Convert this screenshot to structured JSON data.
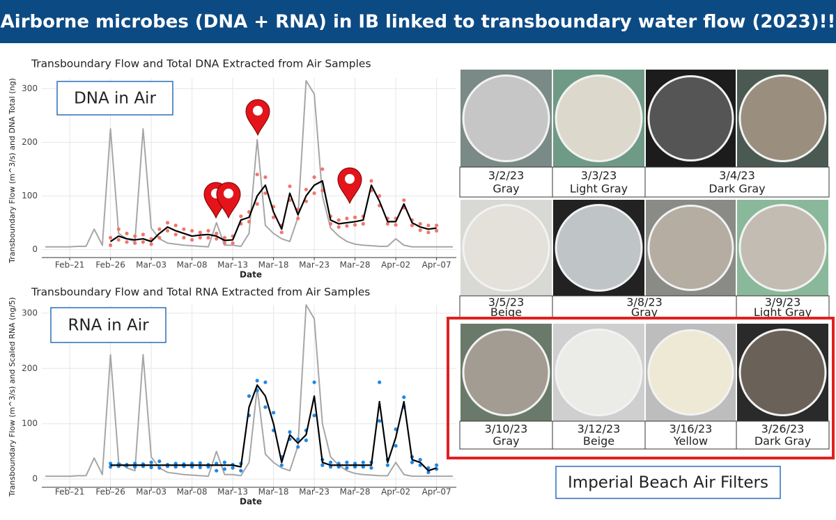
{
  "header": {
    "title": "Airborne microbes (DNA + RNA) in IB linked to transboundary water flow (2023)!!"
  },
  "chart_data": [
    {
      "type": "line",
      "title": "Transboundary Flow and Total DNA Extracted from Air Samples",
      "inset_label": "DNA in Air",
      "xlabel": "Date",
      "ylabel": "Transboundary Flow (m^3/s) and DNA Total (ng)",
      "categories": [
        null,
        null,
        null,
        "Feb–21",
        null,
        null,
        null,
        null,
        "Feb–26",
        null,
        null,
        null,
        null,
        "Mar–03",
        null,
        null,
        null,
        null,
        "Mar–08",
        null,
        null,
        null,
        null,
        "Mar–13",
        null,
        null,
        null,
        null,
        "Mar–18",
        null,
        null,
        null,
        null,
        "Mar–23",
        null,
        null,
        null,
        null,
        "Mar–28",
        null,
        null,
        null,
        null,
        "Apr–02",
        null,
        null,
        null,
        null,
        "Apr–07",
        null,
        null
      ],
      "series": [
        {
          "style": "line",
          "color": "#a6a6a6",
          "values": [
            5,
            5,
            5,
            5,
            6,
            6,
            38,
            8,
            225,
            30,
            20,
            15,
            225,
            40,
            20,
            12,
            10,
            8,
            7,
            6,
            5,
            50,
            8,
            8,
            6,
            30,
            205,
            45,
            30,
            20,
            15,
            60,
            315,
            290,
            100,
            40,
            25,
            15,
            10,
            8,
            7,
            6,
            6,
            20,
            8,
            5,
            5,
            5,
            5,
            5,
            5
          ]
        },
        {
          "style": "points",
          "color": "#f0766d",
          "values": [
            null,
            null,
            null,
            null,
            null,
            null,
            null,
            null,
            22,
            38,
            30,
            25,
            28,
            20,
            38,
            50,
            45,
            38,
            35,
            32,
            35,
            30,
            22,
            25,
            62,
            70,
            140,
            135,
            80,
            45,
            118,
            75,
            112,
            135,
            150,
            62,
            55,
            58,
            60,
            62,
            128,
            100,
            58,
            58,
            92,
            55,
            48,
            45,
            45,
            null,
            null
          ]
        },
        {
          "style": "points",
          "color": "#f0766d",
          "values": [
            null,
            null,
            null,
            null,
            null,
            null,
            null,
            null,
            8,
            18,
            14,
            12,
            14,
            10,
            22,
            35,
            28,
            22,
            18,
            22,
            22,
            20,
            12,
            12,
            48,
            52,
            85,
            105,
            60,
            32,
            92,
            58,
            90,
            105,
            110,
            48,
            42,
            44,
            46,
            48,
            110,
            82,
            48,
            46,
            78,
            45,
            36,
            32,
            35,
            null,
            null
          ]
        },
        {
          "style": "line",
          "color": "#000000",
          "values": [
            null,
            null,
            null,
            null,
            null,
            null,
            null,
            null,
            15,
            25,
            20,
            18,
            20,
            15,
            30,
            42,
            35,
            30,
            25,
            27,
            28,
            25,
            17,
            18,
            55,
            60,
            100,
            120,
            70,
            38,
            105,
            65,
            100,
            120,
            128,
            55,
            48,
            50,
            52,
            55,
            120,
            90,
            52,
            52,
            85,
            50,
            42,
            38,
            40,
            null,
            null
          ]
        }
      ],
      "ylim": [
        -15,
        320
      ],
      "yticks": [
        0,
        100,
        200,
        300
      ],
      "grid": true
    },
    {
      "type": "line",
      "title": "Transboundary Flow and Total RNA Extracted from Air Samples",
      "inset_label": "RNA in Air",
      "xlabel": "Date",
      "ylabel": "Transboundary Flow (m^3/s) and Scaled RNA (ng/5)",
      "categories": [
        null,
        null,
        null,
        "Feb–21",
        null,
        null,
        null,
        null,
        "Feb–26",
        null,
        null,
        null,
        null,
        "Mar–03",
        null,
        null,
        null,
        null,
        "Mar–08",
        null,
        null,
        null,
        null,
        "Mar–13",
        null,
        null,
        null,
        null,
        "Mar–18",
        null,
        null,
        null,
        null,
        "Mar–23",
        null,
        null,
        null,
        null,
        "Mar–28",
        null,
        null,
        null,
        null,
        "Apr–02",
        null,
        null,
        null,
        null,
        "Apr–07",
        null,
        null
      ],
      "series": [
        {
          "style": "line",
          "color": "#a6a6a6",
          "values": [
            5,
            5,
            5,
            5,
            6,
            6,
            38,
            8,
            225,
            30,
            20,
            15,
            225,
            40,
            20,
            12,
            10,
            8,
            7,
            6,
            5,
            50,
            8,
            8,
            6,
            30,
            165,
            45,
            30,
            20,
            15,
            60,
            315,
            290,
            100,
            40,
            25,
            15,
            10,
            8,
            7,
            6,
            6,
            30,
            8,
            5,
            5,
            5,
            5,
            5,
            5
          ]
        },
        {
          "style": "points",
          "color": "#1e88e5",
          "values": [
            null,
            null,
            null,
            null,
            null,
            null,
            null,
            null,
            28,
            27,
            26,
            28,
            27,
            30,
            32,
            26,
            28,
            27,
            28,
            29,
            26,
            28,
            30,
            26,
            28,
            150,
            178,
            175,
            120,
            40,
            85,
            72,
            88,
            175,
            35,
            30,
            28,
            30,
            28,
            30,
            30,
            175,
            35,
            90,
            148,
            40,
            35,
            20,
            25,
            null,
            null
          ]
        },
        {
          "style": "points",
          "color": "#1e88e5",
          "values": [
            null,
            null,
            null,
            null,
            null,
            null,
            null,
            null,
            22,
            23,
            24,
            22,
            23,
            21,
            20,
            23,
            22,
            23,
            22,
            21,
            22,
            15,
            18,
            20,
            15,
            115,
            160,
            130,
            88,
            25,
            72,
            58,
            70,
            115,
            25,
            22,
            22,
            20,
            22,
            22,
            20,
            105,
            25,
            60,
            130,
            30,
            25,
            12,
            18,
            null,
            null
          ]
        },
        {
          "style": "line",
          "color": "#000000",
          "values": [
            null,
            null,
            null,
            null,
            null,
            null,
            null,
            null,
            25,
            25,
            25,
            25,
            25,
            25,
            25,
            25,
            25,
            25,
            25,
            25,
            25,
            25,
            25,
            25,
            22,
            130,
            170,
            150,
            100,
            30,
            80,
            65,
            80,
            150,
            30,
            25,
            25,
            25,
            25,
            25,
            25,
            140,
            30,
            75,
            140,
            35,
            30,
            15,
            20,
            null,
            null
          ]
        }
      ],
      "ylim": [
        -15,
        315
      ],
      "yticks": [
        0,
        100,
        200,
        300
      ],
      "grid": true
    }
  ],
  "filters": {
    "labels": [
      [
        {
          "date": "3/2/23",
          "color": "Gray"
        },
        {
          "date": "3/3/23",
          "color": "Light Gray"
        },
        {
          "date": "3/4/23",
          "color": "Dark Gray"
        }
      ],
      [
        {
          "date": "3/5/23",
          "color": "Beige"
        },
        {
          "date": "3/8/23",
          "color": "Gray"
        },
        {
          "date": "3/9/23",
          "color": "Light Gray"
        }
      ],
      [
        {
          "date": "3/10/23",
          "color": "Gray"
        },
        {
          "date": "3/12/23",
          "color": "Beige"
        },
        {
          "date": "3/16/23",
          "color": "Yellow"
        },
        {
          "date": "3/26/23",
          "color": "Dark Gray"
        }
      ]
    ],
    "caption": "Imperial Beach Air Filters"
  }
}
